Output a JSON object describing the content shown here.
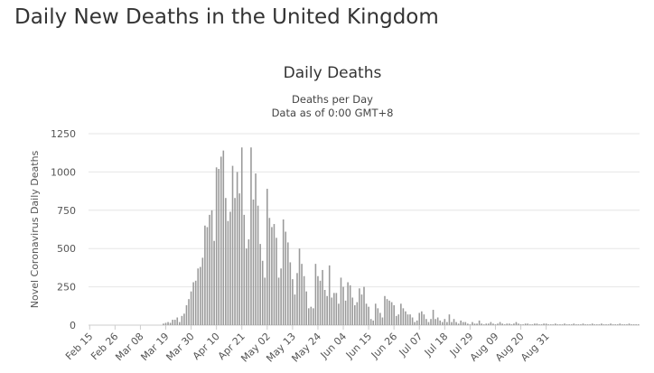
{
  "page": {
    "title": "Daily New Deaths in the United Kingdom"
  },
  "chart_data": {
    "type": "bar",
    "title": "Daily Deaths",
    "subtitle": [
      "Deaths per Day",
      "Data as of 0:00 GMT+8"
    ],
    "ylabel": "Novel Coronavirus Daily Deaths",
    "xlabel": "",
    "ylim": [
      0,
      1250
    ],
    "yticks": [
      0,
      250,
      500,
      750,
      1000,
      1250
    ],
    "grid": true,
    "bar_color": "#9a9a9a",
    "x_tick_labels": [
      "Feb 15",
      "Feb 26",
      "Mar 08",
      "Mar 19",
      "Mar 30",
      "Apr 10",
      "Apr 21",
      "May 02",
      "May 13",
      "May 24",
      "Jun 04",
      "Jun 15",
      "Jun 26",
      "Jul 07",
      "Jul 18",
      "Jul 29",
      "Aug 09",
      "Aug 20",
      "Aug 31"
    ],
    "tick_every_n_days": 11,
    "start_date": "Feb 15",
    "values": [
      0,
      0,
      0,
      0,
      0,
      0,
      0,
      0,
      0,
      0,
      0,
      0,
      0,
      0,
      0,
      0,
      0,
      0,
      0,
      0,
      0,
      0,
      0,
      0,
      0,
      0,
      0,
      0,
      0,
      0,
      0,
      0,
      10,
      15,
      20,
      15,
      35,
      35,
      50,
      20,
      60,
      75,
      130,
      170,
      220,
      280,
      290,
      370,
      380,
      440,
      650,
      640,
      720,
      750,
      550,
      1030,
      1020,
      1100,
      1140,
      830,
      680,
      740,
      1040,
      830,
      1000,
      860,
      1160,
      720,
      500,
      560,
      1160,
      820,
      990,
      780,
      530,
      420,
      310,
      890,
      700,
      640,
      660,
      570,
      310,
      370,
      690,
      610,
      540,
      410,
      300,
      200,
      340,
      500,
      400,
      320,
      220,
      110,
      120,
      110,
      400,
      320,
      290,
      360,
      230,
      190,
      390,
      180,
      210,
      210,
      140,
      310,
      250,
      160,
      280,
      260,
      180,
      130,
      150,
      240,
      200,
      250,
      140,
      120,
      40,
      30,
      140,
      110,
      80,
      50,
      190,
      170,
      160,
      150,
      130,
      60,
      70,
      140,
      110,
      90,
      70,
      70,
      50,
      20,
      30,
      80,
      90,
      70,
      40,
      20,
      40,
      100,
      40,
      50,
      30,
      20,
      40,
      20,
      70,
      20,
      40,
      20,
      10,
      30,
      20,
      20,
      10,
      5,
      20,
      10,
      10,
      30,
      10,
      5,
      10,
      10,
      20,
      10,
      5,
      10,
      20,
      10,
      5,
      10,
      10,
      5,
      10,
      20,
      10,
      5,
      5,
      10,
      10,
      5,
      5,
      10,
      10,
      5,
      5,
      10,
      10,
      5,
      5,
      5,
      10,
      5,
      5,
      5,
      10,
      5,
      5,
      5,
      10,
      5,
      5,
      5,
      10,
      5,
      5,
      5,
      10,
      5,
      5,
      5,
      10,
      5,
      5,
      5,
      10,
      5,
      5,
      5,
      10,
      5,
      5,
      5,
      10,
      5,
      5,
      5,
      5
    ]
  }
}
